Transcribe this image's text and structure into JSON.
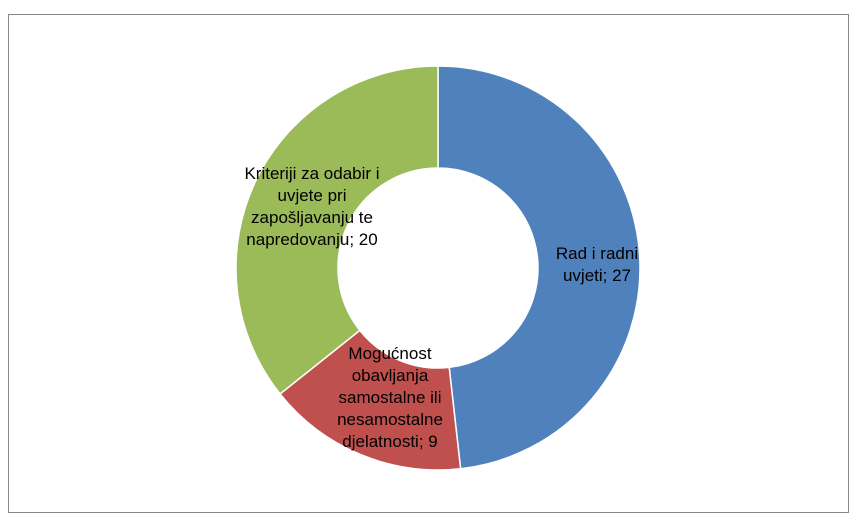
{
  "chart_data": {
    "type": "donut",
    "values": [
      27,
      9,
      20
    ],
    "value_labels": [
      "Rad i radni uvjeti; 27",
      "Mogućnost obavljanja samostalne ili nesamostalne djelatnosti; 9",
      "Kriteriji za odabir i uvjete pri zapošljavanju te napredovanju; 20"
    ],
    "colors": [
      "#4f81bd",
      "#c0504d",
      "#9bbb59"
    ]
  }
}
